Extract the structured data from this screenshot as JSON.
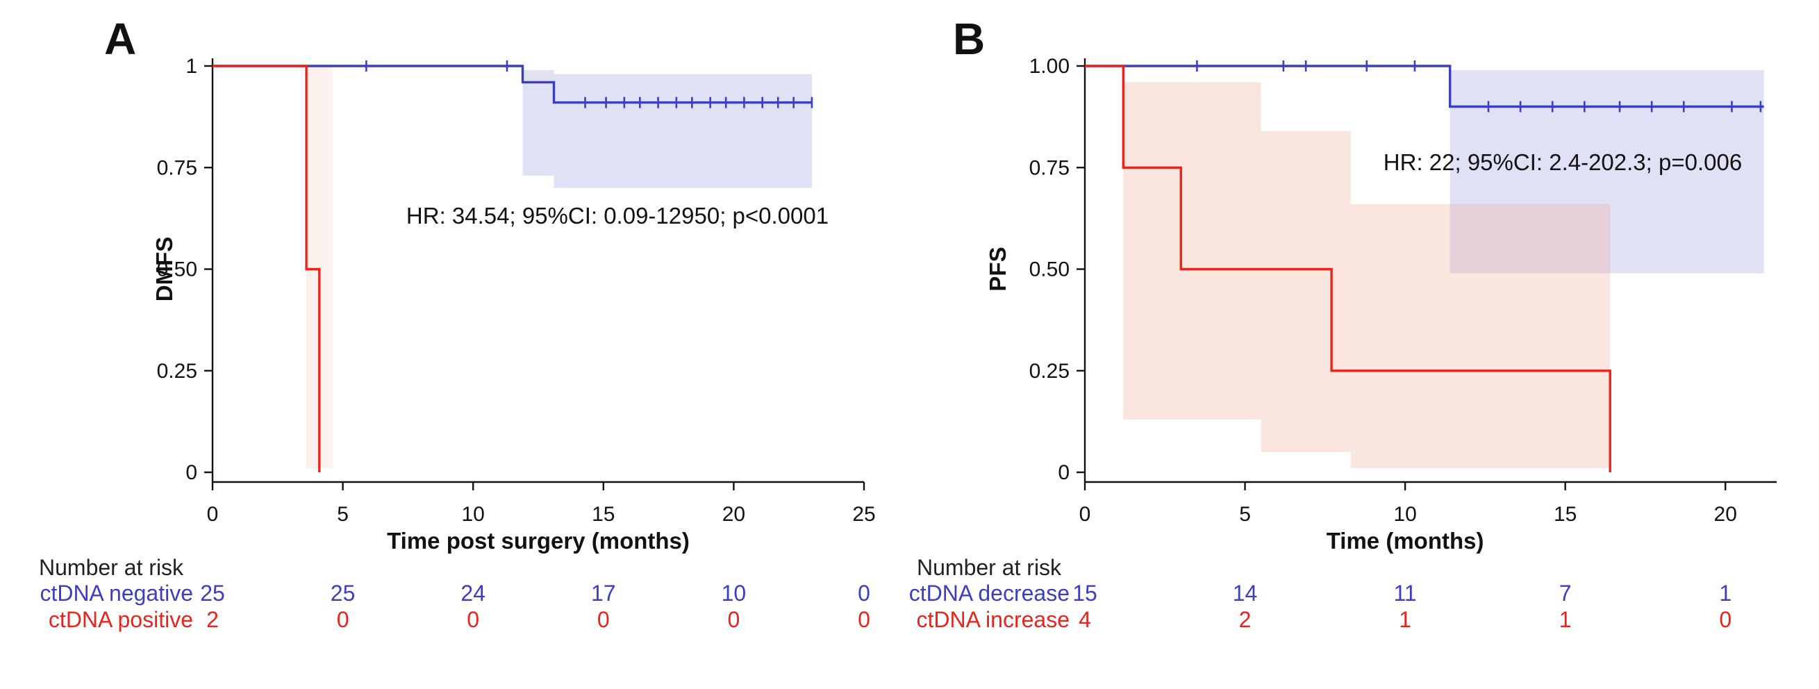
{
  "figure": {
    "background": "#ffffff",
    "axis_color": "#111111"
  },
  "chart_data": [
    {
      "type": "line",
      "subtype": "kaplan-meier",
      "panel_label": "A",
      "ylabel": "DMFS",
      "xlabel": "Time post surgery (months)",
      "annotation": "HR: 34.54; 95%CI: 0.09-12950; p<0.0001",
      "xlim": [
        0,
        25
      ],
      "ylim": [
        0,
        1
      ],
      "xticks": [
        0,
        5,
        10,
        15,
        20,
        25
      ],
      "yticks": [
        {
          "v": 0,
          "label": "0"
        },
        {
          "v": 0.25,
          "label": "0.25"
        },
        {
          "v": 0.5,
          "label": "0.50"
        },
        {
          "v": 0.75,
          "label": "0.75"
        },
        {
          "v": 1,
          "label": "1"
        }
      ],
      "series": [
        {
          "name": "ctDNA negative",
          "color": "#3c3ec0",
          "ci_color": "#9b9ce0",
          "ci_opacity": 0.3,
          "steps": [
            [
              0,
              1
            ],
            [
              11.9,
              1
            ],
            [
              11.9,
              0.96
            ],
            [
              13.1,
              0.96
            ],
            [
              13.1,
              0.91
            ],
            [
              23,
              0.91
            ]
          ],
          "censors": [
            [
              5.9,
              1
            ],
            [
              11.3,
              1
            ],
            [
              14.3,
              0.91
            ],
            [
              15.1,
              0.91
            ],
            [
              15.8,
              0.91
            ],
            [
              16.4,
              0.91
            ],
            [
              17.1,
              0.91
            ],
            [
              17.8,
              0.91
            ],
            [
              18.4,
              0.91
            ],
            [
              19.1,
              0.91
            ],
            [
              19.7,
              0.91
            ],
            [
              20.4,
              0.91
            ],
            [
              21.1,
              0.91
            ],
            [
              21.7,
              0.91
            ],
            [
              22.3,
              0.91
            ],
            [
              23,
              0.91
            ]
          ],
          "ci_upper": [
            [
              11.9,
              0.99
            ],
            [
              13.1,
              0.99
            ],
            [
              13.1,
              0.98
            ],
            [
              23,
              0.98
            ]
          ],
          "ci_lower": [
            [
              11.9,
              0.73
            ],
            [
              13.1,
              0.73
            ],
            [
              13.1,
              0.7
            ],
            [
              23,
              0.7
            ]
          ]
        },
        {
          "name": "ctDNA positive",
          "color": "#e8251d",
          "ci_color": "#f2a28c",
          "ci_opacity": 0.15,
          "steps": [
            [
              0,
              1
            ],
            [
              3.6,
              1
            ],
            [
              3.6,
              0.5
            ],
            [
              4.1,
              0.5
            ],
            [
              4.1,
              0
            ]
          ],
          "censors": [],
          "ci_upper": [
            [
              3.6,
              1
            ],
            [
              4.6,
              1
            ]
          ],
          "ci_lower": [
            [
              3.6,
              0.01
            ],
            [
              4.6,
              0.01
            ]
          ]
        }
      ],
      "risk_table": {
        "title": "Number at risk",
        "rows": [
          {
            "name": "ctDNA negative",
            "color": "#3c3ec0",
            "values": [
              "25",
              "25",
              "24",
              "17",
              "10",
              "0"
            ]
          },
          {
            "name": "ctDNA positive",
            "color": "#e8251d",
            "values": [
              "2",
              "0",
              "0",
              "0",
              "0",
              "0"
            ]
          }
        ]
      }
    },
    {
      "type": "line",
      "subtype": "kaplan-meier",
      "panel_label": "B",
      "ylabel": "PFS",
      "xlabel": "Time (months)",
      "annotation": "HR: 22; 95%CI: 2.4-202.3; p=0.006",
      "xlim": [
        0,
        21.6
      ],
      "ylim": [
        0,
        1
      ],
      "xticks": [
        0,
        5,
        10,
        15,
        20
      ],
      "yticks": [
        {
          "v": 0,
          "label": "0"
        },
        {
          "v": 0.25,
          "label": "0.25"
        },
        {
          "v": 0.5,
          "label": "0.50"
        },
        {
          "v": 0.75,
          "label": "0.75"
        },
        {
          "v": 1,
          "label": "1.00"
        }
      ],
      "series": [
        {
          "name": "ctDNA decrease",
          "color": "#3c3ec0",
          "ci_color": "#9b9ce0",
          "ci_opacity": 0.3,
          "steps": [
            [
              0,
              1
            ],
            [
              11.4,
              1
            ],
            [
              11.4,
              0.9
            ],
            [
              21.2,
              0.9
            ]
          ],
          "censors": [
            [
              3.5,
              1
            ],
            [
              6.2,
              1
            ],
            [
              6.9,
              1
            ],
            [
              8.8,
              1
            ],
            [
              10.3,
              1
            ],
            [
              12.6,
              0.9
            ],
            [
              13.6,
              0.9
            ],
            [
              14.6,
              0.9
            ],
            [
              15.6,
              0.9
            ],
            [
              16.7,
              0.9
            ],
            [
              17.7,
              0.9
            ],
            [
              18.7,
              0.9
            ],
            [
              20.2,
              0.9
            ],
            [
              21.1,
              0.9
            ]
          ],
          "ci_upper": [
            [
              11.4,
              0.99
            ],
            [
              21.2,
              0.99
            ]
          ],
          "ci_lower": [
            [
              11.4,
              0.49
            ],
            [
              21.2,
              0.49
            ]
          ]
        },
        {
          "name": "ctDNA increase",
          "color": "#e8251d",
          "ci_color": "#f2a28c",
          "ci_opacity": 0.28,
          "steps": [
            [
              0,
              1
            ],
            [
              1.2,
              1
            ],
            [
              1.2,
              0.75
            ],
            [
              3.0,
              0.75
            ],
            [
              3.0,
              0.5
            ],
            [
              7.7,
              0.5
            ],
            [
              7.7,
              0.25
            ],
            [
              16.4,
              0.25
            ],
            [
              16.4,
              0
            ]
          ],
          "censors": [],
          "ci_upper": [
            [
              1.2,
              0.96
            ],
            [
              5.5,
              0.96
            ],
            [
              5.5,
              0.84
            ],
            [
              8.3,
              0.84
            ],
            [
              8.3,
              0.66
            ],
            [
              16.4,
              0.66
            ]
          ],
          "ci_lower": [
            [
              1.2,
              0.13
            ],
            [
              5.5,
              0.13
            ],
            [
              5.5,
              0.05
            ],
            [
              8.3,
              0.05
            ],
            [
              8.3,
              0.01
            ],
            [
              16.4,
              0.01
            ]
          ]
        }
      ],
      "risk_table": {
        "title": "Number at risk",
        "rows": [
          {
            "name": "ctDNA decrease",
            "color": "#3c3ec0",
            "values": [
              "15",
              "14",
              "11",
              "7",
              "1"
            ]
          },
          {
            "name": "ctDNA increase",
            "color": "#e8251d",
            "values": [
              "4",
              "2",
              "1",
              "1",
              "0"
            ]
          }
        ]
      }
    }
  ]
}
